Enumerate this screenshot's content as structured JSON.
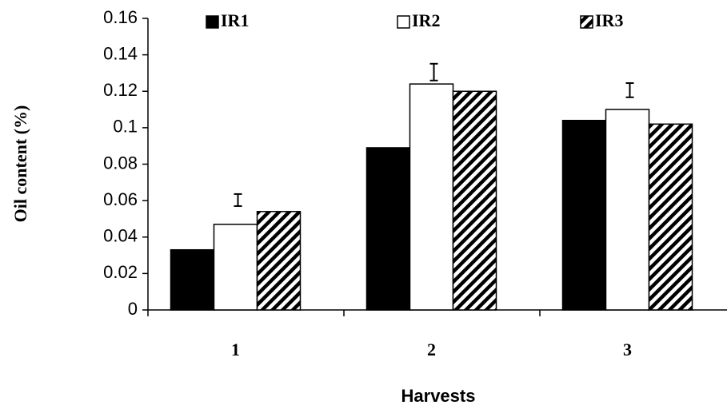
{
  "chart_data": {
    "type": "bar",
    "categories": [
      "1",
      "2",
      "3"
    ],
    "series": [
      {
        "name": "IR1",
        "color": "#000000",
        "pattern": "solid",
        "values": [
          0.033,
          0.089,
          0.104
        ]
      },
      {
        "name": "IR2",
        "color": "#ffffff",
        "pattern": "solid",
        "values": [
          0.047,
          0.124,
          0.11
        ]
      },
      {
        "name": "IR3",
        "color": "#000000",
        "pattern": "hatch",
        "values": [
          0.054,
          0.12,
          0.102
        ]
      }
    ],
    "error_bars": {
      "center": [
        0.0603,
        0.1305,
        0.1206
      ],
      "error": [
        0.0033,
        0.0046,
        0.0039
      ]
    },
    "xlabel": "Harvests",
    "ylabel": "Oil content (%)",
    "ylim": [
      0,
      0.16
    ],
    "yticks": [
      0,
      0.02,
      0.04,
      0.06,
      0.08,
      0.1,
      0.12,
      0.14,
      0.16
    ],
    "grid": false,
    "legend": "top"
  }
}
